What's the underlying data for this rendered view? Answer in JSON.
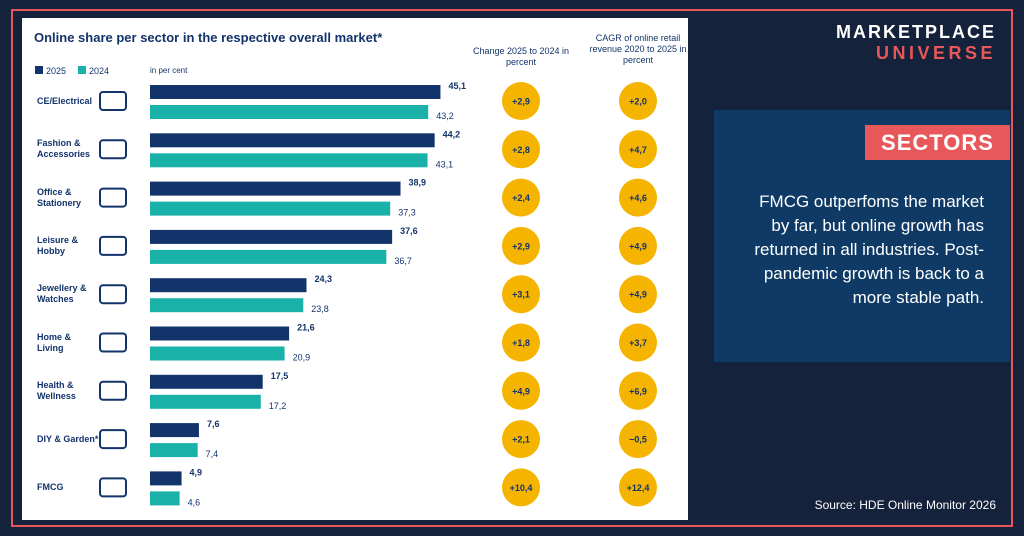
{
  "brand": {
    "line1": "MARKETPLACE",
    "line2": "UNIVERSE"
  },
  "sidebar": {
    "heading": "SECTORS",
    "text": "FMCG outperfoms the market by far, but online growth has returned in all industries. Post-pandemic growth is back to a more stable path.",
    "source": "Source: HDE Online Monitor 2026"
  },
  "chart_data": {
    "type": "bar",
    "orientation": "horizontal",
    "title": "Online share per sector in the respective overall market*",
    "unit_label": "in per cent",
    "categories": [
      "CE/Electrical",
      "Fashion & Accessories",
      "Office & Stationery",
      "Leisure & Hobby",
      "Jewellery & Watches",
      "Home & Living",
      "Health & Wellness",
      "DIY & Garden*",
      "FMCG"
    ],
    "series": [
      {
        "name": "2025",
        "color": "#13336b",
        "values": [
          45.1,
          44.2,
          38.9,
          37.6,
          24.3,
          21.6,
          17.5,
          7.6,
          4.9
        ],
        "value_labels": [
          "45,1",
          "44,2",
          "38,9",
          "37,6",
          "24,3",
          "21,6",
          "17,5",
          "7,6",
          "4,9"
        ]
      },
      {
        "name": "2024",
        "color": "#1ab2a8",
        "values": [
          43.2,
          43.1,
          37.3,
          36.7,
          23.8,
          20.9,
          17.2,
          7.4,
          4.6
        ],
        "value_labels": [
          "43,2",
          "43,1",
          "37,3",
          "36,7",
          "23,8",
          "20,9",
          "17,2",
          "7,4",
          "4,6"
        ]
      }
    ],
    "xlim": [
      0,
      50
    ],
    "columns": [
      {
        "title": "Change 2025 to 2024 in percent",
        "color": "#f5b400",
        "values": [
          2.9,
          2.8,
          2.4,
          2.9,
          3.1,
          1.8,
          4.9,
          2.1,
          10.4
        ],
        "value_labels": [
          "+2,9",
          "+2,8",
          "+2,4",
          "+2,9",
          "+3,1",
          "+1,8",
          "+4,9",
          "+2,1",
          "+10,4"
        ]
      },
      {
        "title": "CAGR of online retail revenue 2020 to 2025 in percent",
        "color": "#f5b400",
        "values": [
          2.0,
          4.7,
          4.6,
          4.9,
          4.9,
          3.7,
          6.9,
          -0.5,
          12.4
        ],
        "value_labels": [
          "+2,0",
          "+4,7",
          "+4,6",
          "+4,9",
          "+4,9",
          "+3,7",
          "+6,9",
          "−0,5",
          "+12,4"
        ]
      }
    ]
  }
}
